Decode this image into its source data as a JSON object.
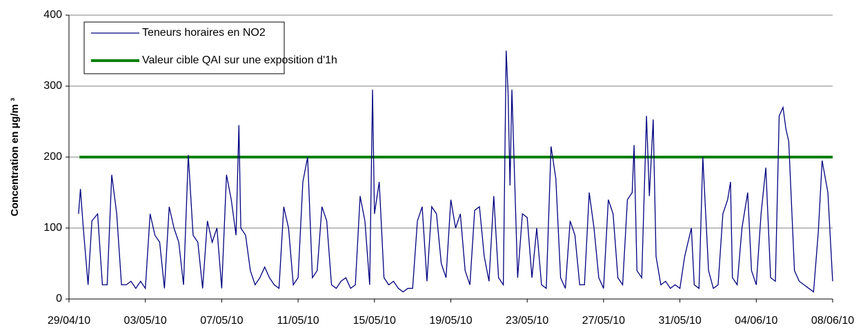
{
  "chart_data": {
    "type": "line",
    "y_label": "Concentration en µg/m ³",
    "xlim": [
      0,
      40
    ],
    "xticks": [
      {
        "value": 0,
        "label": "29/04/10"
      },
      {
        "value": 4,
        "label": "03/05/10"
      },
      {
        "value": 8,
        "label": "07/05/10"
      },
      {
        "value": 12,
        "label": "11/05/10"
      },
      {
        "value": 16,
        "label": "15/05/10"
      },
      {
        "value": 20,
        "label": "19/05/10"
      },
      {
        "value": 24,
        "label": "23/05/10"
      },
      {
        "value": 28,
        "label": "27/05/10"
      },
      {
        "value": 32,
        "label": "31/05/10"
      },
      {
        "value": 36,
        "label": "04/06/10"
      },
      {
        "value": 40,
        "label": "08/06/10"
      }
    ],
    "ylim": [
      0,
      400
    ],
    "yticks": [
      0,
      100,
      200,
      300,
      400
    ],
    "grid": true,
    "legend": "top-left",
    "series": [
      {
        "name": "Teneurs horaires en NO2",
        "color": "#000080",
        "x": [
          0.5,
          0.6,
          0.75,
          1,
          1.2,
          1.5,
          1.75,
          2,
          2.24,
          2.5,
          2.75,
          3,
          3.25,
          3.5,
          3.75,
          4,
          4.25,
          4.5,
          4.75,
          5,
          5.25,
          5.5,
          5.75,
          6,
          6.25,
          6.5,
          6.75,
          7,
          7.25,
          7.5,
          7.75,
          8,
          8.25,
          8.5,
          8.75,
          8.9,
          9,
          9.25,
          9.5,
          9.75,
          10,
          10.25,
          10.5,
          10.75,
          11,
          11.25,
          11.5,
          11.75,
          12,
          12.25,
          12.5,
          12.75,
          13,
          13.25,
          13.5,
          13.75,
          14,
          14.25,
          14.5,
          14.75,
          15,
          15.25,
          15.5,
          15.75,
          15.9,
          16,
          16.25,
          16.5,
          16.75,
          17,
          17.25,
          17.5,
          17.75,
          18,
          18.25,
          18.5,
          18.75,
          19,
          19.25,
          19.5,
          19.75,
          20,
          20.25,
          20.5,
          20.75,
          21,
          21.25,
          21.5,
          21.75,
          22,
          22.25,
          22.5,
          22.75,
          22.9,
          23,
          23.1,
          23.2,
          23.5,
          23.75,
          24,
          24.25,
          24.5,
          24.75,
          25,
          25.25,
          25.5,
          25.75,
          26,
          26.25,
          26.5,
          26.75,
          27,
          27.25,
          27.5,
          27.75,
          28,
          28.25,
          28.5,
          28.75,
          29,
          29.25,
          29.5,
          29.6,
          29.75,
          30,
          30.25,
          30.4,
          30.6,
          30.75,
          31,
          31.25,
          31.5,
          31.75,
          32,
          32.25,
          32.6,
          32.75,
          33,
          33.2,
          33.5,
          33.75,
          34,
          34.25,
          34.5,
          34.65,
          34.75,
          35,
          35.25,
          35.55,
          35.75,
          36,
          36.25,
          36.5,
          36.75,
          37,
          37.2,
          37.4,
          37.55,
          37.7,
          38,
          38.25,
          38.5,
          38.75,
          39,
          39.25,
          39.45,
          39.75,
          40
        ],
        "values": [
          120,
          155,
          100,
          20,
          110,
          120,
          20,
          20,
          175,
          120,
          20,
          20,
          25,
          15,
          25,
          15,
          120,
          90,
          80,
          15,
          130,
          100,
          80,
          20,
          203,
          90,
          80,
          15,
          110,
          80,
          100,
          15,
          175,
          140,
          90,
          245,
          100,
          90,
          40,
          20,
          30,
          45,
          30,
          20,
          15,
          130,
          100,
          20,
          30,
          165,
          200,
          30,
          40,
          130,
          110,
          20,
          15,
          25,
          30,
          15,
          20,
          145,
          110,
          20,
          295,
          120,
          165,
          30,
          20,
          25,
          15,
          10,
          15,
          15,
          110,
          130,
          25,
          130,
          120,
          50,
          30,
          140,
          100,
          120,
          40,
          20,
          125,
          130,
          60,
          25,
          145,
          30,
          20,
          350,
          290,
          160,
          295,
          30,
          120,
          115,
          30,
          100,
          20,
          15,
          215,
          170,
          30,
          15,
          110,
          90,
          20,
          20,
          150,
          100,
          30,
          15,
          140,
          120,
          30,
          20,
          140,
          150,
          217,
          40,
          30,
          258,
          145,
          253,
          60,
          20,
          25,
          15,
          20,
          15,
          60,
          100,
          20,
          15,
          200,
          40,
          15,
          20,
          120,
          140,
          165,
          30,
          20,
          100,
          150,
          40,
          20,
          120,
          185,
          30,
          25,
          258,
          270,
          240,
          222,
          40,
          25,
          20,
          15,
          10,
          95,
          195,
          150,
          25
        ]
      },
      {
        "name": "Valeur cible QAI sur une exposition d'1h",
        "color": "#008000",
        "x": [
          0.55,
          40
        ],
        "values": [
          200,
          200
        ]
      }
    ]
  }
}
